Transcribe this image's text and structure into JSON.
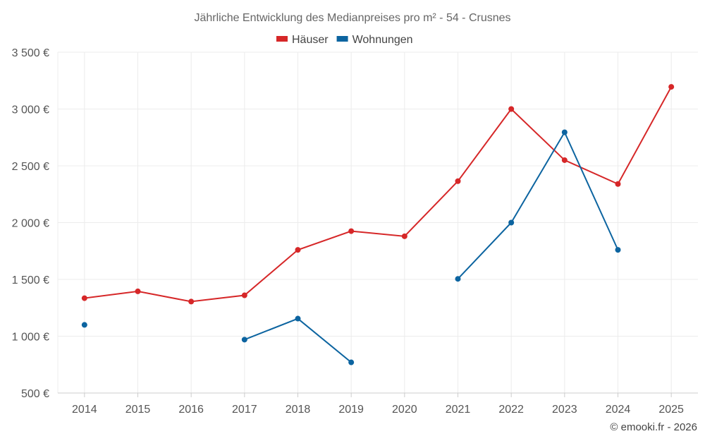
{
  "chart_data": {
    "type": "line",
    "title": "Jährliche Entwicklung des Medianpreises pro m² - 54 - Crusnes",
    "categories": [
      "2014",
      "2015",
      "2016",
      "2017",
      "2018",
      "2019",
      "2020",
      "2021",
      "2022",
      "2023",
      "2024",
      "2025"
    ],
    "series": [
      {
        "name": "Häuser",
        "color": "#d62728",
        "values": [
          1335,
          1395,
          1305,
          1360,
          1760,
          1925,
          1880,
          2365,
          3000,
          2550,
          2340,
          3195
        ]
      },
      {
        "name": "Wohnungen",
        "color": "#0c64a0",
        "values": [
          1100,
          null,
          null,
          970,
          1155,
          770,
          null,
          1505,
          2000,
          2795,
          1760,
          null
        ]
      }
    ],
    "ylim": [
      500,
      3500
    ],
    "yticks": [
      500,
      1000,
      1500,
      2000,
      2500,
      3000,
      3500
    ],
    "ytick_labels": [
      "500 €",
      "1 000 €",
      "1 500 €",
      "2 000 €",
      "2 500 €",
      "3 000 €",
      "3 500 €"
    ],
    "xlabel": "",
    "ylabel": "",
    "grid": true,
    "legend_position": "top-center"
  },
  "credit": "© emooki.fr - 2026"
}
